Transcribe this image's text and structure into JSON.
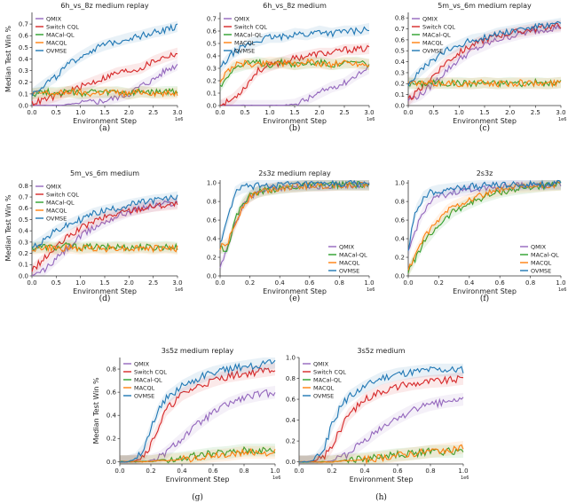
{
  "colors": {
    "QMIX": "#9467bd",
    "Switch CQL": "#d62728",
    "MACal-QL": "#2ca02c",
    "MACQL": "#ff7f0e",
    "OVMSE": "#1f77b4"
  },
  "chart_data": [
    {
      "type": "line",
      "id": "a",
      "title": "6h_vs_8z medium replay",
      "caption": "(a)",
      "xlabel": "Environment Step",
      "ylabel": "Median Test Win %",
      "sci": "1e6",
      "xlim": [
        0,
        3
      ],
      "ylim": [
        0,
        0.8
      ],
      "xticks": [
        "0.0",
        "0.5",
        "1.0",
        "1.5",
        "2.0",
        "2.5",
        "3.0"
      ],
      "yticks": [
        "0.0",
        "0.1",
        "0.2",
        "0.3",
        "0.4",
        "0.5",
        "0.6",
        "0.7"
      ],
      "legend": "top-left",
      "x": [
        0,
        0.25,
        0.5,
        0.75,
        1,
        1.25,
        1.5,
        1.75,
        2,
        2.25,
        2.5,
        2.75,
        3
      ],
      "series": [
        {
          "name": "QMIX",
          "values": [
            0,
            0,
            0,
            0.01,
            0.02,
            0.03,
            0.04,
            0.07,
            0.1,
            0.17,
            0.22,
            0.3,
            0.35
          ]
        },
        {
          "name": "Switch CQL",
          "values": [
            0.02,
            0.05,
            0.08,
            0.12,
            0.16,
            0.2,
            0.24,
            0.28,
            0.3,
            0.32,
            0.38,
            0.42,
            0.45
          ]
        },
        {
          "name": "MACal-QL",
          "values": [
            0.1,
            0.12,
            0.11,
            0.12,
            0.1,
            0.12,
            0.11,
            0.12,
            0.1,
            0.12,
            0.11,
            0.12,
            0.12
          ]
        },
        {
          "name": "MACQL",
          "values": [
            0.1,
            0.11,
            0.1,
            0.12,
            0.11,
            0.1,
            0.12,
            0.11,
            0.1,
            0.12,
            0.11,
            0.1,
            0.11
          ]
        },
        {
          "name": "OVMSE",
          "values": [
            0.1,
            0.18,
            0.25,
            0.35,
            0.42,
            0.48,
            0.52,
            0.55,
            0.58,
            0.6,
            0.63,
            0.65,
            0.68
          ]
        }
      ]
    },
    {
      "type": "line",
      "id": "b",
      "title": "6h_vs_8z medium",
      "caption": "(b)",
      "xlabel": "Environment Step",
      "ylabel": "",
      "sci": "1e6",
      "xlim": [
        0,
        3
      ],
      "ylim": [
        0,
        0.75
      ],
      "xticks": [
        "0.0",
        "0.5",
        "1.0",
        "1.5",
        "2.0",
        "2.5",
        "3.0"
      ],
      "yticks": [
        "0.0",
        "0.1",
        "0.2",
        "0.3",
        "0.4",
        "0.5",
        "0.6",
        "0.7"
      ],
      "legend": "top-left",
      "x": [
        0,
        0.25,
        0.5,
        0.75,
        1,
        1.25,
        1.5,
        1.75,
        2,
        2.25,
        2.5,
        2.75,
        3
      ],
      "series": [
        {
          "name": "QMIX",
          "values": [
            0,
            0,
            0,
            0,
            0,
            0,
            0.01,
            0.05,
            0.1,
            0.15,
            0.18,
            0.25,
            0.3
          ]
        },
        {
          "name": "Switch CQL",
          "values": [
            0,
            0.05,
            0.15,
            0.28,
            0.32,
            0.35,
            0.38,
            0.4,
            0.42,
            0.42,
            0.45,
            0.45,
            0.46
          ]
        },
        {
          "name": "MACal-QL",
          "values": [
            0.15,
            0.3,
            0.33,
            0.35,
            0.33,
            0.35,
            0.33,
            0.34,
            0.35,
            0.33,
            0.34,
            0.35,
            0.33
          ]
        },
        {
          "name": "MACQL",
          "values": [
            0.2,
            0.32,
            0.34,
            0.33,
            0.35,
            0.34,
            0.33,
            0.35,
            0.34,
            0.33,
            0.35,
            0.34,
            0.33
          ]
        },
        {
          "name": "OVMSE",
          "values": [
            0.3,
            0.42,
            0.48,
            0.52,
            0.55,
            0.55,
            0.58,
            0.57,
            0.6,
            0.58,
            0.6,
            0.6,
            0.62
          ]
        }
      ]
    },
    {
      "type": "line",
      "id": "c",
      "title": "5m_vs_6m medium replay",
      "caption": "(c)",
      "xlabel": "Environment Step",
      "ylabel": "",
      "sci": "1e6",
      "xlim": [
        0,
        3
      ],
      "ylim": [
        0,
        0.85
      ],
      "xticks": [
        "0.0",
        "0.5",
        "1.0",
        "1.5",
        "2.0",
        "2.5",
        "3.0"
      ],
      "yticks": [
        "0.0",
        "0.1",
        "0.2",
        "0.3",
        "0.4",
        "0.5",
        "0.6",
        "0.7",
        "0.8"
      ],
      "legend": "top-left",
      "x": [
        0,
        0.25,
        0.5,
        0.75,
        1,
        1.25,
        1.5,
        1.75,
        2,
        2.25,
        2.5,
        2.75,
        3
      ],
      "series": [
        {
          "name": "QMIX",
          "values": [
            0.05,
            0.1,
            0.2,
            0.32,
            0.42,
            0.5,
            0.55,
            0.6,
            0.63,
            0.66,
            0.68,
            0.7,
            0.72
          ]
        },
        {
          "name": "Switch CQL",
          "values": [
            0.05,
            0.15,
            0.28,
            0.4,
            0.48,
            0.55,
            0.6,
            0.64,
            0.66,
            0.68,
            0.7,
            0.72,
            0.73
          ]
        },
        {
          "name": "MACal-QL",
          "values": [
            0.2,
            0.2,
            0.21,
            0.2,
            0.21,
            0.2,
            0.21,
            0.2,
            0.21,
            0.2,
            0.21,
            0.2,
            0.21
          ]
        },
        {
          "name": "MACQL",
          "values": [
            0.21,
            0.2,
            0.2,
            0.21,
            0.2,
            0.2,
            0.21,
            0.2,
            0.2,
            0.21,
            0.2,
            0.2,
            0.21
          ]
        },
        {
          "name": "OVMSE",
          "values": [
            0.2,
            0.32,
            0.42,
            0.5,
            0.55,
            0.6,
            0.62,
            0.66,
            0.68,
            0.7,
            0.72,
            0.73,
            0.75
          ]
        }
      ]
    },
    {
      "type": "line",
      "id": "d",
      "title": "5m_vs_6m medium",
      "caption": "(d)",
      "xlabel": "Environment Step",
      "ylabel": "Median Test Win %",
      "sci": "1e6",
      "xlim": [
        0,
        3
      ],
      "ylim": [
        0,
        0.85
      ],
      "xticks": [
        "0.0",
        "0.5",
        "1.0",
        "1.5",
        "2.0",
        "2.5",
        "3.0"
      ],
      "yticks": [
        "0.0",
        "0.1",
        "0.2",
        "0.3",
        "0.4",
        "0.5",
        "0.6",
        "0.7",
        "0.8"
      ],
      "legend": "top-left",
      "x": [
        0,
        0.25,
        0.5,
        0.75,
        1,
        1.25,
        1.5,
        1.75,
        2,
        2.25,
        2.5,
        2.75,
        3
      ],
      "series": [
        {
          "name": "QMIX",
          "values": [
            0,
            0.05,
            0.15,
            0.25,
            0.35,
            0.42,
            0.48,
            0.53,
            0.57,
            0.6,
            0.62,
            0.64,
            0.65
          ]
        },
        {
          "name": "Switch CQL",
          "values": [
            0.05,
            0.15,
            0.25,
            0.35,
            0.42,
            0.48,
            0.52,
            0.55,
            0.58,
            0.6,
            0.62,
            0.63,
            0.64
          ]
        },
        {
          "name": "MACal-QL",
          "values": [
            0.25,
            0.26,
            0.25,
            0.27,
            0.25,
            0.26,
            0.25,
            0.26,
            0.25,
            0.26,
            0.25,
            0.26,
            0.25
          ]
        },
        {
          "name": "MACQL",
          "values": [
            0.24,
            0.25,
            0.24,
            0.25,
            0.24,
            0.25,
            0.24,
            0.25,
            0.24,
            0.25,
            0.24,
            0.25,
            0.24
          ]
        },
        {
          "name": "OVMSE",
          "values": [
            0.25,
            0.32,
            0.4,
            0.45,
            0.5,
            0.55,
            0.58,
            0.6,
            0.63,
            0.65,
            0.67,
            0.68,
            0.7
          ]
        }
      ]
    },
    {
      "type": "line",
      "id": "e",
      "title": "2s3z medium replay",
      "caption": "(e)",
      "xlabel": "Environment Step",
      "ylabel": "",
      "sci": "1e6",
      "xlim": [
        0,
        1
      ],
      "ylim": [
        0,
        1.03
      ],
      "xticks": [
        "0.0",
        "0.2",
        "0.4",
        "0.6",
        "0.8",
        "1.0"
      ],
      "yticks": [
        "0.0",
        "0.2",
        "0.4",
        "0.6",
        "0.8",
        "1.0"
      ],
      "legend": "bottom-right",
      "x": [
        0,
        0.05,
        0.1,
        0.15,
        0.2,
        0.25,
        0.3,
        0.4,
        0.5,
        0.6,
        0.7,
        0.8,
        0.9,
        1
      ],
      "series": [
        {
          "name": "QMIX",
          "values": [
            0.1,
            0.3,
            0.55,
            0.75,
            0.85,
            0.9,
            0.93,
            0.95,
            0.96,
            0.97,
            0.97,
            0.98,
            0.98,
            0.98
          ]
        },
        {
          "name": "MACal-QL",
          "values": [
            0.3,
            0.3,
            0.6,
            0.78,
            0.86,
            0.9,
            0.92,
            0.94,
            0.96,
            0.97,
            0.98,
            0.98,
            0.98,
            0.98
          ]
        },
        {
          "name": "MACQL",
          "values": [
            0.3,
            0.35,
            0.55,
            0.75,
            0.85,
            0.9,
            0.92,
            0.95,
            0.96,
            0.97,
            0.97,
            0.98,
            0.98,
            0.98
          ]
        },
        {
          "name": "OVMSE",
          "values": [
            0.35,
            0.6,
            0.9,
            0.95,
            0.96,
            0.97,
            0.97,
            0.98,
            0.98,
            0.98,
            0.98,
            0.99,
            0.99,
            0.99
          ]
        }
      ]
    },
    {
      "type": "line",
      "id": "f",
      "title": "2s3z",
      "caption": "(f)",
      "xlabel": "Environment Step",
      "ylabel": "",
      "sci": "1e6",
      "xlim": [
        0,
        1
      ],
      "ylim": [
        0,
        1.03
      ],
      "xticks": [
        "0.0",
        "0.2",
        "0.4",
        "0.6",
        "0.8",
        "1.0"
      ],
      "yticks": [
        "0.0",
        "0.2",
        "0.4",
        "0.6",
        "0.8",
        "1.0"
      ],
      "legend": "bottom-right",
      "x": [
        0,
        0.05,
        0.1,
        0.15,
        0.2,
        0.25,
        0.3,
        0.4,
        0.5,
        0.6,
        0.7,
        0.8,
        0.9,
        1
      ],
      "series": [
        {
          "name": "QMIX",
          "values": [
            0.25,
            0.5,
            0.7,
            0.8,
            0.85,
            0.88,
            0.9,
            0.93,
            0.95,
            0.96,
            0.97,
            0.98,
            0.98,
            0.99
          ]
        },
        {
          "name": "MACal-QL",
          "values": [
            0.05,
            0.2,
            0.35,
            0.45,
            0.55,
            0.62,
            0.7,
            0.78,
            0.85,
            0.9,
            0.93,
            0.95,
            0.97,
            0.98
          ]
        },
        {
          "name": "MACQL",
          "values": [
            0.05,
            0.25,
            0.4,
            0.5,
            0.6,
            0.7,
            0.75,
            0.82,
            0.88,
            0.92,
            0.95,
            0.96,
            0.97,
            0.98
          ]
        },
        {
          "name": "OVMSE",
          "values": [
            0.3,
            0.7,
            0.85,
            0.9,
            0.92,
            0.93,
            0.94,
            0.96,
            0.97,
            0.98,
            0.98,
            0.99,
            0.99,
            0.99
          ]
        }
      ]
    },
    {
      "type": "line",
      "id": "g",
      "title": "3s5z medium replay",
      "caption": "(g)",
      "xlabel": "Environment Step",
      "ylabel": "Median Test Win %",
      "sci": "1e6",
      "xlim": [
        0,
        1
      ],
      "ylim": [
        -0.02,
        0.9
      ],
      "xticks": [
        "0.0",
        "0.2",
        "0.4",
        "0.6",
        "0.8",
        "1.0"
      ],
      "yticks": [
        "0.0",
        "0.2",
        "0.4",
        "0.6",
        "0.8"
      ],
      "legend": "top-left",
      "x": [
        0,
        0.05,
        0.1,
        0.15,
        0.2,
        0.25,
        0.3,
        0.4,
        0.5,
        0.6,
        0.7,
        0.8,
        0.9,
        1
      ],
      "series": [
        {
          "name": "QMIX",
          "values": [
            0,
            0,
            0,
            0,
            0.01,
            0.03,
            0.08,
            0.2,
            0.32,
            0.42,
            0.5,
            0.55,
            0.58,
            0.6
          ]
        },
        {
          "name": "Switch CQL",
          "values": [
            0,
            0,
            0.01,
            0.05,
            0.15,
            0.3,
            0.45,
            0.58,
            0.65,
            0.7,
            0.74,
            0.76,
            0.78,
            0.8
          ]
        },
        {
          "name": "MACal-QL",
          "values": [
            0,
            0,
            0,
            0,
            0,
            0.01,
            0.02,
            0.03,
            0.05,
            0.07,
            0.08,
            0.1,
            0.1,
            0.1
          ]
        },
        {
          "name": "MACQL",
          "values": [
            0,
            0,
            0,
            0,
            0,
            0.01,
            0.01,
            0.02,
            0.03,
            0.05,
            0.06,
            0.08,
            0.08,
            0.08
          ]
        },
        {
          "name": "OVMSE",
          "values": [
            0,
            0,
            0.02,
            0.1,
            0.28,
            0.45,
            0.55,
            0.65,
            0.72,
            0.77,
            0.8,
            0.82,
            0.84,
            0.86
          ]
        }
      ]
    },
    {
      "type": "line",
      "id": "h",
      "title": "3s5z medium",
      "caption": "(h)",
      "xlabel": "Environment Step",
      "ylabel": "",
      "sci": "1e6",
      "xlim": [
        0,
        1
      ],
      "ylim": [
        -0.02,
        1.0
      ],
      "xticks": [
        "0.0",
        "0.2",
        "0.4",
        "0.6",
        "0.8",
        "1.0"
      ],
      "yticks": [
        "0.0",
        "0.2",
        "0.4",
        "0.6",
        "0.8",
        "1.0"
      ],
      "legend": "top-left",
      "x": [
        0,
        0.05,
        0.1,
        0.15,
        0.2,
        0.25,
        0.3,
        0.4,
        0.5,
        0.6,
        0.7,
        0.8,
        0.9,
        1
      ],
      "series": [
        {
          "name": "QMIX",
          "values": [
            0,
            0,
            0,
            0,
            0.01,
            0.03,
            0.08,
            0.2,
            0.32,
            0.42,
            0.5,
            0.55,
            0.58,
            0.6
          ]
        },
        {
          "name": "Switch CQL",
          "values": [
            0,
            0,
            0.01,
            0.05,
            0.15,
            0.3,
            0.45,
            0.6,
            0.68,
            0.72,
            0.75,
            0.77,
            0.78,
            0.8
          ]
        },
        {
          "name": "MACal-QL",
          "values": [
            0,
            0,
            0,
            0,
            0,
            0.01,
            0.02,
            0.03,
            0.05,
            0.07,
            0.08,
            0.1,
            0.1,
            0.1
          ]
        },
        {
          "name": "MACQL",
          "values": [
            0,
            0,
            0,
            0,
            0,
            0.01,
            0.01,
            0.02,
            0.04,
            0.06,
            0.08,
            0.1,
            0.12,
            0.14
          ]
        },
        {
          "name": "OVMSE",
          "values": [
            0,
            0,
            0.02,
            0.12,
            0.35,
            0.52,
            0.62,
            0.72,
            0.8,
            0.84,
            0.86,
            0.88,
            0.88,
            0.88
          ]
        }
      ]
    }
  ]
}
